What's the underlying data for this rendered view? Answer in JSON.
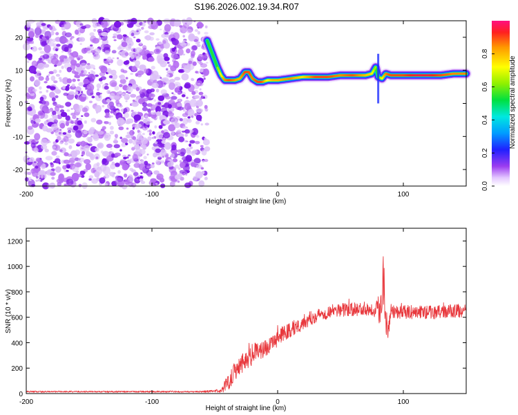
{
  "title": "S196.2026.002.19.34.R07",
  "chart_data": [
    {
      "type": "heatmap",
      "xlabel": "Height of straight line (km)",
      "ylabel": "Frequency (Hz)",
      "xlim": [
        -200,
        150
      ],
      "ylim": [
        -25,
        25
      ],
      "xticks": [
        -200,
        -100,
        0,
        100
      ],
      "yticks": [
        -20,
        -10,
        0,
        10,
        20
      ],
      "colorbar": {
        "label": "Normalized spectral amplitude",
        "range": [
          0,
          1
        ],
        "ticks": [
          0.0,
          0.2,
          0.4,
          0.6,
          0.8
        ]
      },
      "noise_region_x": [
        -200,
        -56
      ],
      "ridge": {
        "x": [
          -56,
          -52,
          -48,
          -45,
          -42,
          -38,
          -34,
          -30,
          -26,
          -23,
          -20,
          -16,
          -12,
          -8,
          -4,
          0,
          10,
          20,
          30,
          40,
          50,
          60,
          70,
          75,
          78,
          80,
          83,
          86,
          90,
          100,
          110,
          120,
          130,
          140,
          150
        ],
        "y": [
          19,
          15,
          11,
          8.5,
          7,
          7,
          7,
          7.5,
          9.5,
          9.5,
          7.5,
          6.5,
          6.5,
          7,
          7,
          7,
          7.5,
          8,
          8,
          8,
          8.5,
          8.5,
          8.5,
          9,
          11,
          8,
          7.5,
          9,
          8.5,
          8.5,
          8.5,
          8.5,
          8.5,
          9,
          9
        ],
        "amplitude": [
          0.3,
          0.55,
          0.6,
          0.7,
          0.85,
          0.9,
          0.85,
          0.8,
          0.9,
          0.9,
          0.85,
          0.9,
          0.9,
          0.7,
          0.8,
          0.8,
          0.85,
          0.75,
          0.9,
          0.9,
          0.85,
          0.9,
          0.8,
          0.75,
          0.6,
          0.55,
          0.7,
          0.85,
          0.9,
          0.9,
          0.95,
          0.95,
          0.9,
          0.85,
          0.85
        ]
      }
    },
    {
      "type": "line",
      "xlabel": "Height of straight line (km)",
      "ylabel": "SNR (10 * v/v)",
      "xlim": [
        -200,
        150
      ],
      "ylim": [
        0,
        1300
      ],
      "xticks": [
        -200,
        -100,
        0,
        100
      ],
      "yticks": [
        0,
        200,
        400,
        600,
        800,
        1000,
        1200
      ],
      "series": [
        {
          "color": "#e8383d",
          "x": [
            -200,
            -150,
            -100,
            -60,
            -45,
            -42,
            -38,
            -35,
            -30,
            -25,
            -20,
            -15,
            -10,
            -5,
            0,
            10,
            20,
            30,
            40,
            50,
            60,
            70,
            78,
            82,
            84,
            86,
            88,
            90,
            100,
            110,
            120,
            130,
            140,
            150
          ],
          "y": [
            15,
            15,
            15,
            15,
            20,
            60,
            110,
            170,
            230,
            270,
            310,
            330,
            360,
            380,
            440,
            500,
            560,
            610,
            640,
            660,
            660,
            670,
            660,
            680,
            950,
            650,
            500,
            650,
            640,
            640,
            640,
            640,
            650,
            650
          ],
          "spread": [
            10,
            10,
            10,
            10,
            20,
            80,
            120,
            140,
            130,
            140,
            150,
            120,
            110,
            100,
            110,
            110,
            100,
            90,
            90,
            90,
            90,
            90,
            100,
            250,
            400,
            300,
            150,
            90,
            90,
            90,
            90,
            90,
            90,
            90
          ]
        }
      ]
    }
  ]
}
